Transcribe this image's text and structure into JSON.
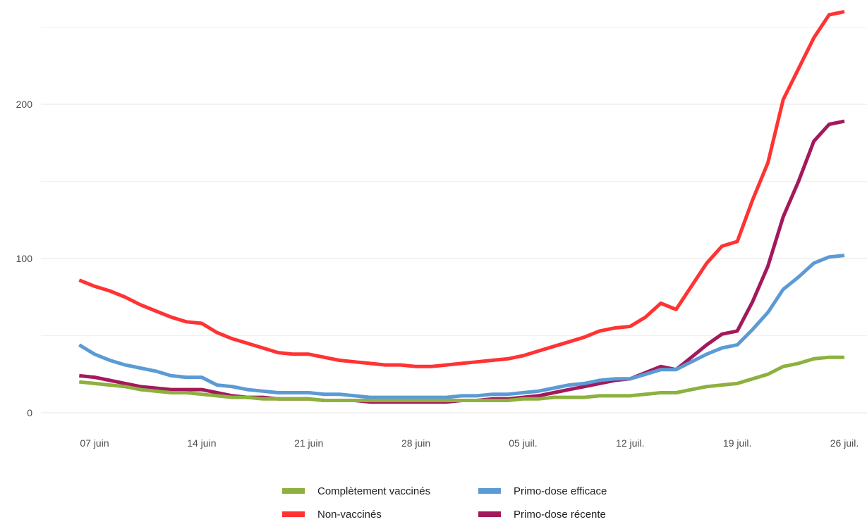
{
  "chart_data": {
    "type": "line",
    "title": "",
    "xlabel": "",
    "ylabel": "",
    "x_start": "2021-06-07",
    "x_end": "2021-07-26",
    "x_ticks": [
      {
        "date": "2021-06-07",
        "label": "07 juin"
      },
      {
        "date": "2021-06-14",
        "label": "14 juin"
      },
      {
        "date": "2021-06-21",
        "label": "21 juin"
      },
      {
        "date": "2021-06-28",
        "label": "28 juin"
      },
      {
        "date": "2021-07-05",
        "label": "05 juil."
      },
      {
        "date": "2021-07-12",
        "label": "12 juil."
      },
      {
        "date": "2021-07-19",
        "label": "19 juil."
      },
      {
        "date": "2021-07-26",
        "label": "26 juil."
      }
    ],
    "y_ticks": [
      0,
      100,
      200
    ],
    "ylim": [
      0,
      260
    ],
    "grid": true,
    "legend_position": "bottom",
    "series": [
      {
        "name": "Non-vaccinés",
        "color": "#ff3333",
        "points": [
          [
            "2021-06-06",
            86
          ],
          [
            "2021-06-07",
            82
          ],
          [
            "2021-06-08",
            79
          ],
          [
            "2021-06-09",
            75
          ],
          [
            "2021-06-10",
            70
          ],
          [
            "2021-06-11",
            66
          ],
          [
            "2021-06-12",
            62
          ],
          [
            "2021-06-13",
            59
          ],
          [
            "2021-06-14",
            58
          ],
          [
            "2021-06-15",
            52
          ],
          [
            "2021-06-16",
            48
          ],
          [
            "2021-06-17",
            45
          ],
          [
            "2021-06-18",
            42
          ],
          [
            "2021-06-19",
            39
          ],
          [
            "2021-06-20",
            38
          ],
          [
            "2021-06-21",
            38
          ],
          [
            "2021-06-22",
            36
          ],
          [
            "2021-06-23",
            34
          ],
          [
            "2021-06-24",
            33
          ],
          [
            "2021-06-25",
            32
          ],
          [
            "2021-06-26",
            31
          ],
          [
            "2021-06-27",
            31
          ],
          [
            "2021-06-28",
            30
          ],
          [
            "2021-06-29",
            30
          ],
          [
            "2021-06-30",
            31
          ],
          [
            "2021-07-01",
            32
          ],
          [
            "2021-07-02",
            33
          ],
          [
            "2021-07-03",
            34
          ],
          [
            "2021-07-04",
            35
          ],
          [
            "2021-07-05",
            37
          ],
          [
            "2021-07-06",
            40
          ],
          [
            "2021-07-07",
            43
          ],
          [
            "2021-07-08",
            46
          ],
          [
            "2021-07-09",
            49
          ],
          [
            "2021-07-10",
            53
          ],
          [
            "2021-07-11",
            55
          ],
          [
            "2021-07-12",
            56
          ],
          [
            "2021-07-13",
            62
          ],
          [
            "2021-07-14",
            71
          ],
          [
            "2021-07-15",
            67
          ],
          [
            "2021-07-16",
            82
          ],
          [
            "2021-07-17",
            97
          ],
          [
            "2021-07-18",
            108
          ],
          [
            "2021-07-19",
            111
          ],
          [
            "2021-07-20",
            138
          ],
          [
            "2021-07-21",
            162
          ],
          [
            "2021-07-22",
            203
          ],
          [
            "2021-07-23",
            223
          ],
          [
            "2021-07-24",
            243
          ],
          [
            "2021-07-25",
            258
          ],
          [
            "2021-07-26",
            260
          ]
        ]
      },
      {
        "name": "Primo-dose récente",
        "color": "#a3195b",
        "points": [
          [
            "2021-06-06",
            24
          ],
          [
            "2021-06-07",
            23
          ],
          [
            "2021-06-08",
            21
          ],
          [
            "2021-06-09",
            19
          ],
          [
            "2021-06-10",
            17
          ],
          [
            "2021-06-11",
            16
          ],
          [
            "2021-06-12",
            15
          ],
          [
            "2021-06-13",
            15
          ],
          [
            "2021-06-14",
            15
          ],
          [
            "2021-06-15",
            13
          ],
          [
            "2021-06-16",
            11
          ],
          [
            "2021-06-17",
            10
          ],
          [
            "2021-06-18",
            10
          ],
          [
            "2021-06-19",
            9
          ],
          [
            "2021-06-20",
            9
          ],
          [
            "2021-06-21",
            9
          ],
          [
            "2021-06-22",
            8
          ],
          [
            "2021-06-23",
            8
          ],
          [
            "2021-06-24",
            8
          ],
          [
            "2021-06-25",
            7
          ],
          [
            "2021-06-26",
            7
          ],
          [
            "2021-06-27",
            7
          ],
          [
            "2021-06-28",
            7
          ],
          [
            "2021-06-29",
            7
          ],
          [
            "2021-06-30",
            7
          ],
          [
            "2021-07-01",
            8
          ],
          [
            "2021-07-02",
            8
          ],
          [
            "2021-07-03",
            9
          ],
          [
            "2021-07-04",
            9
          ],
          [
            "2021-07-05",
            10
          ],
          [
            "2021-07-06",
            11
          ],
          [
            "2021-07-07",
            13
          ],
          [
            "2021-07-08",
            15
          ],
          [
            "2021-07-09",
            17
          ],
          [
            "2021-07-10",
            19
          ],
          [
            "2021-07-11",
            21
          ],
          [
            "2021-07-12",
            22
          ],
          [
            "2021-07-13",
            26
          ],
          [
            "2021-07-14",
            30
          ],
          [
            "2021-07-15",
            28
          ],
          [
            "2021-07-16",
            36
          ],
          [
            "2021-07-17",
            44
          ],
          [
            "2021-07-18",
            51
          ],
          [
            "2021-07-19",
            53
          ],
          [
            "2021-07-20",
            72
          ],
          [
            "2021-07-21",
            95
          ],
          [
            "2021-07-22",
            127
          ],
          [
            "2021-07-23",
            150
          ],
          [
            "2021-07-24",
            176
          ],
          [
            "2021-07-25",
            187
          ],
          [
            "2021-07-26",
            189
          ]
        ]
      },
      {
        "name": "Primo-dose efficace",
        "color": "#5b9bd5",
        "points": [
          [
            "2021-06-06",
            44
          ],
          [
            "2021-06-07",
            38
          ],
          [
            "2021-06-08",
            34
          ],
          [
            "2021-06-09",
            31
          ],
          [
            "2021-06-10",
            29
          ],
          [
            "2021-06-11",
            27
          ],
          [
            "2021-06-12",
            24
          ],
          [
            "2021-06-13",
            23
          ],
          [
            "2021-06-14",
            23
          ],
          [
            "2021-06-15",
            18
          ],
          [
            "2021-06-16",
            17
          ],
          [
            "2021-06-17",
            15
          ],
          [
            "2021-06-18",
            14
          ],
          [
            "2021-06-19",
            13
          ],
          [
            "2021-06-20",
            13
          ],
          [
            "2021-06-21",
            13
          ],
          [
            "2021-06-22",
            12
          ],
          [
            "2021-06-23",
            12
          ],
          [
            "2021-06-24",
            11
          ],
          [
            "2021-06-25",
            10
          ],
          [
            "2021-06-26",
            10
          ],
          [
            "2021-06-27",
            10
          ],
          [
            "2021-06-28",
            10
          ],
          [
            "2021-06-29",
            10
          ],
          [
            "2021-06-30",
            10
          ],
          [
            "2021-07-01",
            11
          ],
          [
            "2021-07-02",
            11
          ],
          [
            "2021-07-03",
            12
          ],
          [
            "2021-07-04",
            12
          ],
          [
            "2021-07-05",
            13
          ],
          [
            "2021-07-06",
            14
          ],
          [
            "2021-07-07",
            16
          ],
          [
            "2021-07-08",
            18
          ],
          [
            "2021-07-09",
            19
          ],
          [
            "2021-07-10",
            21
          ],
          [
            "2021-07-11",
            22
          ],
          [
            "2021-07-12",
            22
          ],
          [
            "2021-07-13",
            25
          ],
          [
            "2021-07-14",
            28
          ],
          [
            "2021-07-15",
            28
          ],
          [
            "2021-07-16",
            33
          ],
          [
            "2021-07-17",
            38
          ],
          [
            "2021-07-18",
            42
          ],
          [
            "2021-07-19",
            44
          ],
          [
            "2021-07-20",
            54
          ],
          [
            "2021-07-21",
            65
          ],
          [
            "2021-07-22",
            80
          ],
          [
            "2021-07-23",
            88
          ],
          [
            "2021-07-24",
            97
          ],
          [
            "2021-07-25",
            101
          ],
          [
            "2021-07-26",
            102
          ]
        ]
      },
      {
        "name": "Complètement vaccinés",
        "color": "#8db13e",
        "points": [
          [
            "2021-06-06",
            20
          ],
          [
            "2021-06-07",
            19
          ],
          [
            "2021-06-08",
            18
          ],
          [
            "2021-06-09",
            17
          ],
          [
            "2021-06-10",
            15
          ],
          [
            "2021-06-11",
            14
          ],
          [
            "2021-06-12",
            13
          ],
          [
            "2021-06-13",
            13
          ],
          [
            "2021-06-14",
            12
          ],
          [
            "2021-06-15",
            11
          ],
          [
            "2021-06-16",
            10
          ],
          [
            "2021-06-17",
            10
          ],
          [
            "2021-06-18",
            9
          ],
          [
            "2021-06-19",
            9
          ],
          [
            "2021-06-20",
            9
          ],
          [
            "2021-06-21",
            9
          ],
          [
            "2021-06-22",
            8
          ],
          [
            "2021-06-23",
            8
          ],
          [
            "2021-06-24",
            8
          ],
          [
            "2021-06-25",
            8
          ],
          [
            "2021-06-26",
            8
          ],
          [
            "2021-06-27",
            8
          ],
          [
            "2021-06-28",
            8
          ],
          [
            "2021-06-29",
            8
          ],
          [
            "2021-06-30",
            8
          ],
          [
            "2021-07-01",
            8
          ],
          [
            "2021-07-02",
            8
          ],
          [
            "2021-07-03",
            8
          ],
          [
            "2021-07-04",
            8
          ],
          [
            "2021-07-05",
            9
          ],
          [
            "2021-07-06",
            9
          ],
          [
            "2021-07-07",
            10
          ],
          [
            "2021-07-08",
            10
          ],
          [
            "2021-07-09",
            10
          ],
          [
            "2021-07-10",
            11
          ],
          [
            "2021-07-11",
            11
          ],
          [
            "2021-07-12",
            11
          ],
          [
            "2021-07-13",
            12
          ],
          [
            "2021-07-14",
            13
          ],
          [
            "2021-07-15",
            13
          ],
          [
            "2021-07-16",
            15
          ],
          [
            "2021-07-17",
            17
          ],
          [
            "2021-07-18",
            18
          ],
          [
            "2021-07-19",
            19
          ],
          [
            "2021-07-20",
            22
          ],
          [
            "2021-07-21",
            25
          ],
          [
            "2021-07-22",
            30
          ],
          [
            "2021-07-23",
            32
          ],
          [
            "2021-07-24",
            35
          ],
          [
            "2021-07-25",
            36
          ],
          [
            "2021-07-26",
            36
          ]
        ]
      }
    ],
    "legend": [
      {
        "label": "Complètement vaccinés",
        "series": "Complètement vaccinés"
      },
      {
        "label": "Primo-dose efficace",
        "series": "Primo-dose efficace"
      },
      {
        "label": "Non-vaccinés",
        "series": "Non-vaccinés"
      },
      {
        "label": "Primo-dose récente",
        "series": "Primo-dose récente"
      }
    ]
  }
}
